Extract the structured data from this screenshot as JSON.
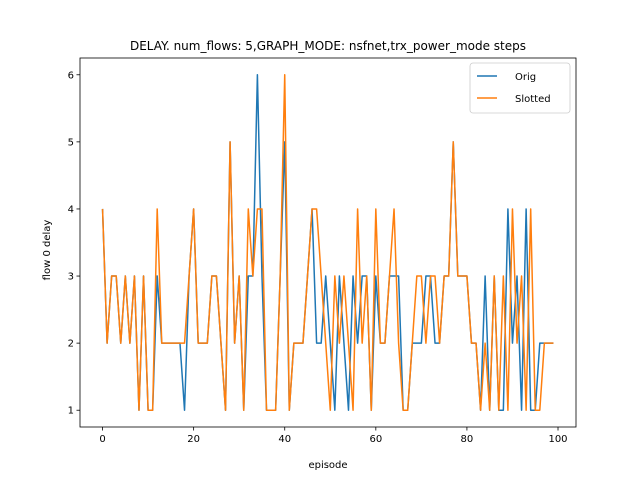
{
  "chart_data": {
    "type": "line",
    "title": "DELAY. num_flows: 5,GRAPH_MODE: nsfnet,trx_power_mode steps",
    "xlabel": "episode",
    "ylabel": "flow 0 delay",
    "xlim": [
      -4.95,
      103.95
    ],
    "ylim": [
      0.75,
      6.25
    ],
    "xticks": [
      0,
      20,
      40,
      60,
      80,
      100
    ],
    "yticks": [
      1,
      2,
      3,
      4,
      5,
      6
    ],
    "grid": false,
    "legend": "top-right",
    "x": [
      0,
      1,
      2,
      3,
      4,
      5,
      6,
      7,
      8,
      9,
      10,
      11,
      12,
      13,
      14,
      15,
      16,
      17,
      18,
      19,
      20,
      21,
      22,
      23,
      24,
      25,
      26,
      27,
      28,
      29,
      30,
      31,
      32,
      33,
      34,
      35,
      36,
      37,
      38,
      39,
      40,
      41,
      42,
      43,
      44,
      45,
      46,
      47,
      48,
      49,
      50,
      51,
      52,
      53,
      54,
      55,
      56,
      57,
      58,
      59,
      60,
      61,
      62,
      63,
      64,
      65,
      66,
      67,
      68,
      69,
      70,
      71,
      72,
      73,
      74,
      75,
      76,
      77,
      78,
      79,
      80,
      81,
      82,
      83,
      84,
      85,
      86,
      87,
      88,
      89,
      90,
      91,
      92,
      93,
      94,
      95,
      96,
      97,
      98,
      99
    ],
    "series": [
      {
        "name": "Orig",
        "color": "#1f77b4",
        "values": [
          4,
          2,
          3,
          3,
          2,
          3,
          2,
          3,
          1,
          3,
          1,
          1,
          3,
          2,
          2,
          2,
          2,
          2,
          1,
          3,
          4,
          2,
          2,
          2,
          3,
          3,
          2,
          1,
          5,
          2,
          3,
          1,
          3,
          3,
          6,
          3,
          1,
          1,
          1,
          3,
          5,
          1,
          2,
          2,
          2,
          3,
          4,
          2,
          2,
          3,
          2,
          1,
          3,
          2,
          1,
          3,
          2,
          3,
          3,
          1,
          3,
          2,
          2,
          3,
          3,
          3,
          1,
          1,
          2,
          2,
          2,
          3,
          3,
          2,
          2,
          3,
          3,
          5,
          3,
          3,
          3,
          2,
          2,
          1,
          3,
          1,
          3,
          1,
          1,
          4,
          2,
          3,
          1,
          4,
          1,
          1,
          2,
          2,
          2,
          2
        ]
      },
      {
        "name": "Slotted",
        "color": "#ff7f0e",
        "values": [
          4,
          2,
          3,
          3,
          2,
          3,
          2,
          3,
          1,
          3,
          1,
          1,
          4,
          2,
          2,
          2,
          2,
          2,
          2,
          3,
          4,
          2,
          2,
          2,
          3,
          3,
          2,
          1,
          5,
          2,
          3,
          1,
          4,
          3,
          4,
          4,
          1,
          1,
          1,
          3,
          6,
          1,
          2,
          2,
          2,
          3,
          4,
          4,
          3,
          2,
          1,
          3,
          2,
          3,
          2,
          1,
          4,
          2,
          3,
          1,
          4,
          2,
          2,
          3,
          4,
          2,
          1,
          1,
          2,
          3,
          3,
          2,
          3,
          3,
          2,
          3,
          3,
          5,
          3,
          3,
          3,
          2,
          2,
          1,
          2,
          1,
          3,
          1,
          3,
          1,
          4,
          2,
          3,
          1,
          4,
          1,
          1,
          2,
          2,
          2
        ]
      }
    ]
  }
}
